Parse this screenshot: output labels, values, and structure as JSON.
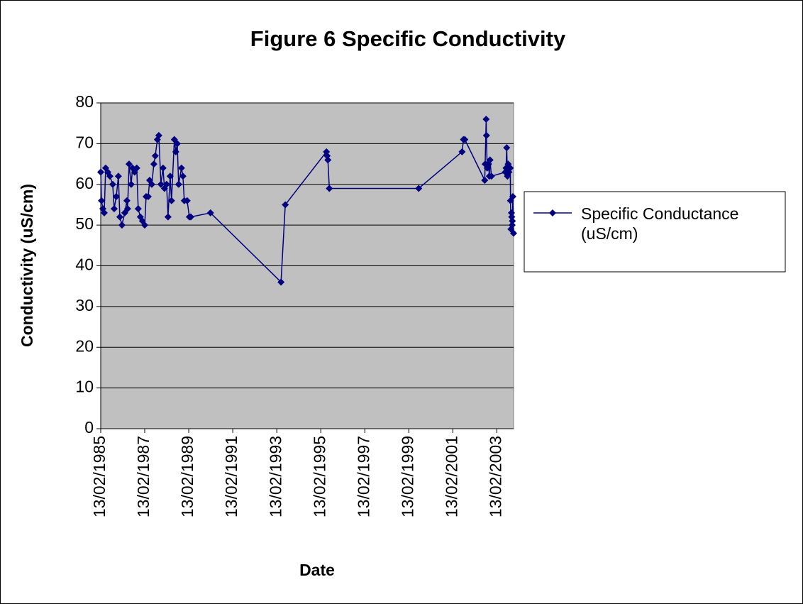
{
  "chart_data": {
    "type": "line",
    "title": "Figure 6 Specific Conductivity",
    "x_label": "Date",
    "y_label": "Conductivity (uS/cm)",
    "x": [
      "1985-02-13",
      "1985-02-25",
      "1985-03-20",
      "1985-04-12",
      "1985-05-06",
      "1985-06-10",
      "1985-07-15",
      "1985-08-31",
      "1985-09-24",
      "1985-10-29",
      "1985-12-03",
      "1985-12-27",
      "1986-01-31",
      "1986-03-19",
      "1986-04-23",
      "1986-05-05",
      "1986-05-29",
      "1986-07-03",
      "1986-07-26",
      "1986-08-30",
      "1986-10-04",
      "1986-10-28",
      "1986-12-02",
      "1987-01-06",
      "1987-02-13",
      "1987-03-08",
      "1987-04-12",
      "1987-05-06",
      "1987-06-10",
      "1987-07-15",
      "1987-08-07",
      "1987-09-11",
      "1987-10-05",
      "1987-11-09",
      "1987-12-14",
      "1988-01-07",
      "1988-02-11",
      "1988-03-06",
      "1988-04-10",
      "1988-05-03",
      "1988-06-19",
      "1988-07-13",
      "1988-08-06",
      "1988-08-29",
      "1988-10-15",
      "1988-11-08",
      "1988-12-01",
      "1989-01-17",
      "1989-02-23",
      "1989-03-19",
      "1990-02-09",
      "1993-04-24",
      "1993-07-04",
      "1995-05-18",
      "1995-05-30",
      "1995-06-11",
      "1995-07-05",
      "1999-07-27",
      "2001-07-16",
      "2001-08-08",
      "2001-08-31",
      "2002-07-27",
      "2002-08-03",
      "2002-08-20",
      "2002-08-25",
      "2002-09-05",
      "2002-09-29",
      "2002-10-11",
      "2002-10-23",
      "2002-11-15",
      "2003-07-04",
      "2003-07-16",
      "2003-07-27",
      "2003-08-08",
      "2003-08-20",
      "2003-09-01",
      "2003-09-24",
      "2003-09-28",
      "2003-10-06",
      "2003-10-14",
      "2003-10-18",
      "2003-10-25",
      "2003-10-29",
      "2003-11-06",
      "2003-11-18"
    ],
    "series": [
      {
        "name": "Specific Conductance (uS/cm)",
        "color": "#000080",
        "values": [
          63,
          56,
          54,
          53,
          64,
          63,
          62,
          60,
          54,
          57,
          62,
          52,
          50,
          53,
          56,
          54,
          65,
          60,
          64,
          63,
          64,
          54,
          52,
          51,
          50,
          57,
          57,
          61,
          60,
          65,
          67,
          71,
          72,
          60,
          64,
          59,
          60,
          52,
          62,
          56,
          71,
          68,
          70,
          60,
          64,
          62,
          56,
          56,
          52,
          52,
          53,
          36,
          55,
          68,
          67,
          66,
          59,
          59,
          68,
          71,
          71,
          61,
          65,
          76,
          72,
          64,
          65,
          62,
          66,
          62,
          63,
          64,
          69,
          62,
          65,
          63,
          64,
          56,
          49,
          53,
          52,
          50,
          51,
          57,
          48
        ]
      }
    ],
    "xlim": [
      "1985-02-13",
      "2003-11-18"
    ],
    "xticks": [
      {
        "value": "1985-02-13",
        "label": "13/02/1985"
      },
      {
        "value": "1987-02-13",
        "label": "13/02/1987"
      },
      {
        "value": "1989-02-13",
        "label": "13/02/1989"
      },
      {
        "value": "1991-02-13",
        "label": "13/02/1991"
      },
      {
        "value": "1993-02-13",
        "label": "13/02/1993"
      },
      {
        "value": "1995-02-13",
        "label": "13/02/1995"
      },
      {
        "value": "1997-02-13",
        "label": "13/02/1997"
      },
      {
        "value": "1999-02-13",
        "label": "13/02/1999"
      },
      {
        "value": "2001-02-13",
        "label": "13/02/2001"
      },
      {
        "value": "2003-02-13",
        "label": "13/02/2003"
      }
    ],
    "ylim": [
      0,
      80
    ],
    "yticks": [
      0,
      10,
      20,
      30,
      40,
      50,
      60,
      70,
      80
    ],
    "grid": true,
    "legend": "right"
  }
}
